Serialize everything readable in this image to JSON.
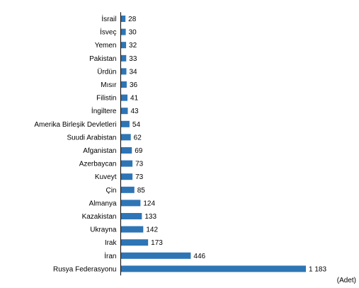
{
  "chart_data": {
    "type": "bar",
    "orientation": "horizontal",
    "categories": [
      "İsrail",
      "İsveç",
      "Yemen",
      "Pakistan",
      "Ürdün",
      "Mısır",
      "Filistin",
      "İngiltere",
      "Amerika Birleşik Devletleri",
      "Suudi Arabistan",
      "Afganistan",
      "Azerbaycan",
      "Kuveyt",
      "Çin",
      "Almanya",
      "Kazakistan",
      "Ukrayna",
      "Irak",
      "İran",
      "Rusya Federasyonu"
    ],
    "values": [
      28,
      30,
      32,
      33,
      34,
      36,
      41,
      43,
      54,
      62,
      69,
      73,
      73,
      85,
      124,
      133,
      142,
      173,
      446,
      1183
    ],
    "value_labels": [
      "28",
      "30",
      "32",
      "33",
      "34",
      "36",
      "41",
      "43",
      "54",
      "62",
      "69",
      "73",
      "73",
      "85",
      "124",
      "133",
      "142",
      "173",
      "446",
      "1 183"
    ],
    "unit": "(Adet)",
    "bar_color": "#2e75b6",
    "grid": false,
    "legend": "none"
  }
}
